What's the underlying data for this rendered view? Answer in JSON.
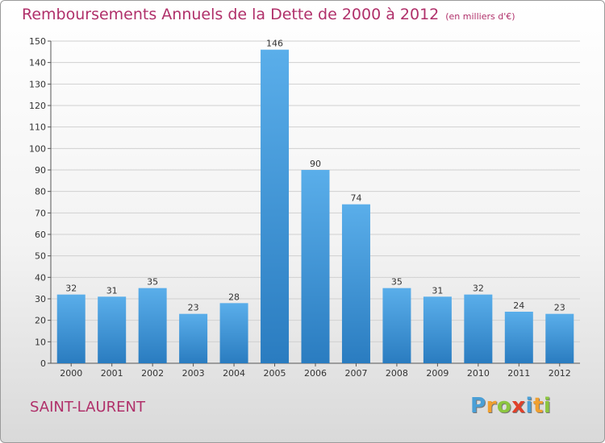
{
  "chart_data": {
    "type": "bar",
    "title": "Remboursements Annuels de la Dette de 2000 à 2012",
    "subtitle": "(en milliers d'€)",
    "categories": [
      "2000",
      "2001",
      "2002",
      "2003",
      "2004",
      "2005",
      "2006",
      "2007",
      "2008",
      "2009",
      "2010",
      "2011",
      "2012"
    ],
    "values": [
      32,
      31,
      35,
      23,
      28,
      146,
      90,
      74,
      35,
      31,
      32,
      24,
      23
    ],
    "ylim": [
      0,
      150
    ],
    "yticks": [
      0,
      10,
      20,
      30,
      40,
      50,
      60,
      70,
      80,
      90,
      100,
      110,
      120,
      130,
      140,
      150
    ],
    "grid": true,
    "xlabel": "",
    "ylabel": ""
  },
  "commune": "SAINT-LAURENT",
  "logo": {
    "text": "Proxiti",
    "letters": [
      "P",
      "r",
      "o",
      "x",
      "i",
      "t",
      "i"
    ],
    "colors": [
      "#4a9fd6",
      "#f0a030",
      "#8cc63f",
      "#e0402a",
      "#4a9fd6",
      "#f0a030",
      "#8cc63f"
    ]
  },
  "colors": {
    "bar_light": "#5aaeea",
    "bar_dark": "#2a7cc0",
    "title": "#b0306a",
    "grid": "#d0d0d0"
  }
}
